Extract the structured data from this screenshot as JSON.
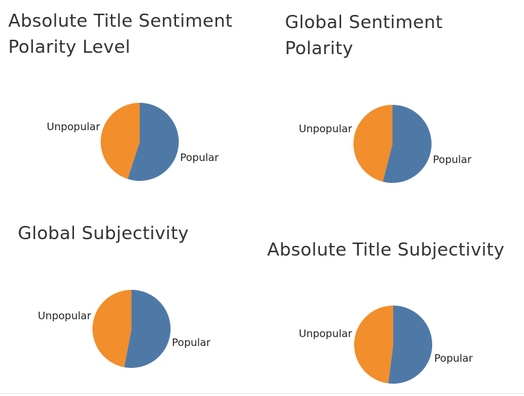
{
  "colors": {
    "popular": "#4e79a7",
    "unpopular": "#f28e2b"
  },
  "chart_data": [
    {
      "type": "pie",
      "title": "Absolute Title Sentiment Polarity Level",
      "title_lines": [
        "Absolute Title Sentiment",
        "Polarity Level"
      ],
      "slices": [
        {
          "label": "Popular",
          "value": 0.55,
          "color": "#4e79a7"
        },
        {
          "label": "Unpopular",
          "value": 0.45,
          "color": "#f28e2b"
        }
      ]
    },
    {
      "type": "pie",
      "title": "Global Sentiment Polarity",
      "title_lines": [
        "Global Sentiment",
        "Polarity"
      ],
      "slices": [
        {
          "label": "Popular",
          "value": 0.54,
          "color": "#4e79a7"
        },
        {
          "label": "Unpopular",
          "value": 0.46,
          "color": "#f28e2b"
        }
      ]
    },
    {
      "type": "pie",
      "title": "Global Subjectivity",
      "title_lines": [
        "Global Subjectivity"
      ],
      "slices": [
        {
          "label": "Popular",
          "value": 0.53,
          "color": "#4e79a7"
        },
        {
          "label": "Unpopular",
          "value": 0.47,
          "color": "#f28e2b"
        }
      ]
    },
    {
      "type": "pie",
      "title": "Absolute Title Subjectivity",
      "title_lines": [
        "Absolute Title Subjectivity"
      ],
      "slices": [
        {
          "label": "Popular",
          "value": 0.52,
          "color": "#4e79a7"
        },
        {
          "label": "Unpopular",
          "value": 0.48,
          "color": "#f28e2b"
        }
      ]
    }
  ]
}
